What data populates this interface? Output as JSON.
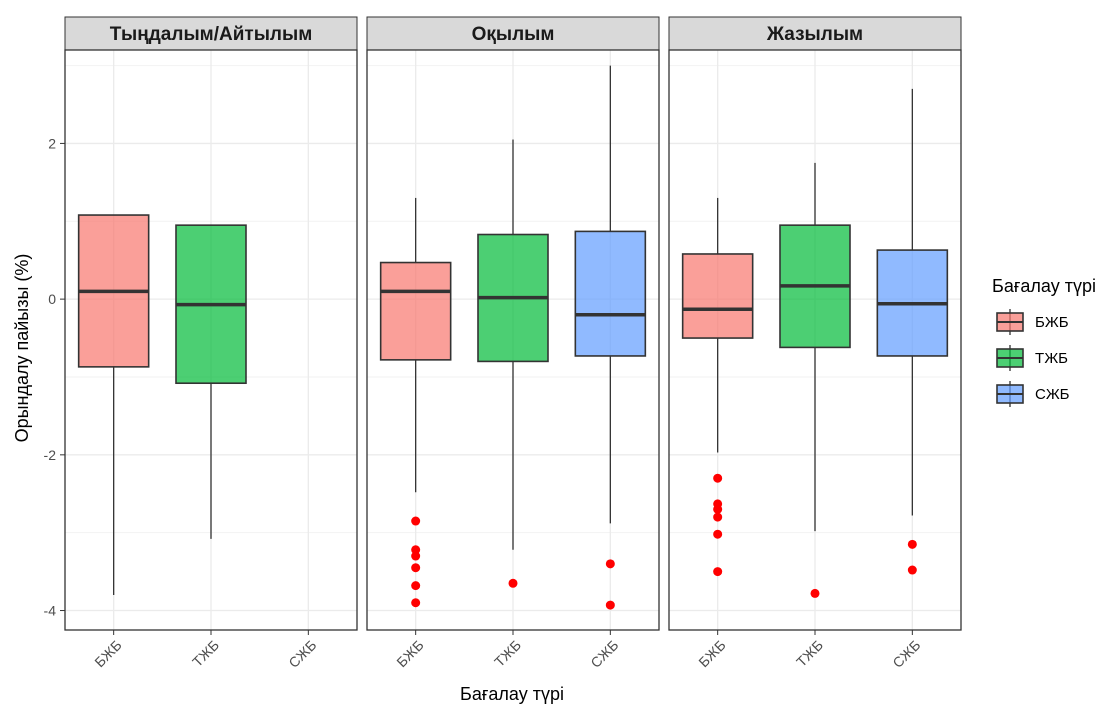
{
  "chart_data": {
    "type": "box",
    "ylabel": "Орындалу пайызы (%)",
    "xlabel": "Бағалау түрі",
    "ylim": [
      -4.25,
      3.2
    ],
    "yticks": [
      -4,
      -2,
      0,
      2
    ],
    "categories": [
      "БЖБ",
      "ТЖБ",
      "СЖБ"
    ],
    "grid": true,
    "legend": {
      "title": "Бағалау түрі",
      "position": "right",
      "items": [
        {
          "label": "БЖБ",
          "color": "#F8766D"
        },
        {
          "label": "ТЖБ",
          "color": "#00BA38"
        },
        {
          "label": "СЖБ",
          "color": "#619CFF"
        }
      ]
    },
    "panels": [
      {
        "title": "Тыңдалым/Айтылым",
        "boxes": [
          {
            "category": "БЖБ",
            "lower_whisker": -3.8,
            "q1": -0.87,
            "median": 0.1,
            "q3": 1.08,
            "upper_whisker": 1.08,
            "outliers": []
          },
          {
            "category": "ТЖБ",
            "lower_whisker": -3.08,
            "q1": -1.08,
            "median": -0.07,
            "q3": 0.95,
            "upper_whisker": 0.95,
            "outliers": []
          }
        ]
      },
      {
        "title": "Оқылым",
        "boxes": [
          {
            "category": "БЖБ",
            "lower_whisker": -2.48,
            "q1": -0.78,
            "median": 0.1,
            "q3": 0.47,
            "upper_whisker": 1.3,
            "outliers": [
              -2.85,
              -3.22,
              -3.3,
              -3.45,
              -3.68,
              -3.9
            ]
          },
          {
            "category": "ТЖБ",
            "lower_whisker": -3.22,
            "q1": -0.8,
            "median": 0.02,
            "q3": 0.83,
            "upper_whisker": 2.05,
            "outliers": [
              -3.65
            ]
          },
          {
            "category": "СЖБ",
            "lower_whisker": -2.88,
            "q1": -0.73,
            "median": -0.2,
            "q3": 0.87,
            "upper_whisker": 3.0,
            "outliers": [
              -3.4,
              -3.93
            ]
          }
        ]
      },
      {
        "title": "Жазылым",
        "boxes": [
          {
            "category": "БЖБ",
            "lower_whisker": -1.97,
            "q1": -0.5,
            "median": -0.13,
            "q3": 0.58,
            "upper_whisker": 1.3,
            "outliers": [
              -2.3,
              -2.63,
              -2.7,
              -2.8,
              -3.02,
              -3.5
            ]
          },
          {
            "category": "ТЖБ",
            "lower_whisker": -2.98,
            "q1": -0.62,
            "median": 0.17,
            "q3": 0.95,
            "upper_whisker": 1.75,
            "outliers": [
              -3.78
            ]
          },
          {
            "category": "СЖБ",
            "lower_whisker": -2.78,
            "q1": -0.73,
            "median": -0.06,
            "q3": 0.63,
            "upper_whisker": 2.7,
            "outliers": [
              -3.15,
              -3.48
            ]
          }
        ]
      }
    ]
  }
}
